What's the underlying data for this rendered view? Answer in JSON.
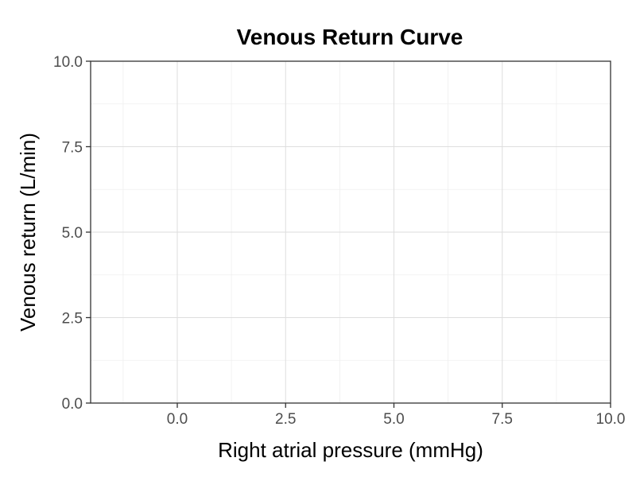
{
  "chart_data": {
    "type": "line",
    "title": "Venous Return Curve",
    "xlabel": "Right atrial pressure (mmHg)",
    "ylabel": "Venous return (L/min)",
    "xlim": [
      -2,
      10
    ],
    "ylim": [
      0,
      10
    ],
    "x_ticks": [
      "0.0",
      "2.5",
      "5.0",
      "7.5",
      "10.0"
    ],
    "y_ticks": [
      "0.0",
      "2.5",
      "5.0",
      "7.5",
      "10.0"
    ],
    "x_tick_values": [
      0,
      2.5,
      5,
      7.5,
      10
    ],
    "y_tick_values": [
      0,
      2.5,
      5,
      7.5,
      10
    ],
    "x_minor_values": [
      -1.25,
      1.25,
      3.75,
      6.25,
      8.75
    ],
    "y_minor_values": [
      1.25,
      3.75,
      6.25,
      8.75
    ],
    "series": [],
    "grid": true,
    "colors": {
      "grid_major": "#dedede",
      "grid_minor": "#efefef",
      "border": "#333333",
      "tick_text": "#4d4d4d"
    }
  }
}
